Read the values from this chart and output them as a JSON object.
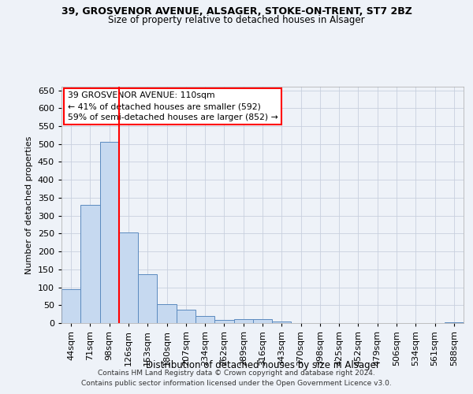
{
  "title_line1": "39, GROSVENOR AVENUE, ALSAGER, STOKE-ON-TRENT, ST7 2BZ",
  "title_line2": "Size of property relative to detached houses in Alsager",
  "xlabel": "Distribution of detached houses by size in Alsager",
  "ylabel": "Number of detached properties",
  "footer_line1": "Contains HM Land Registry data © Crown copyright and database right 2024.",
  "footer_line2": "Contains public sector information licensed under the Open Government Licence v3.0.",
  "annotation_line1": "39 GROSVENOR AVENUE: 110sqm",
  "annotation_line2": "← 41% of detached houses are smaller (592)",
  "annotation_line3": "59% of semi-detached houses are larger (852) →",
  "bar_labels": [
    "44sqm",
    "71sqm",
    "98sqm",
    "126sqm",
    "153sqm",
    "180sqm",
    "207sqm",
    "234sqm",
    "262sqm",
    "289sqm",
    "316sqm",
    "343sqm",
    "370sqm",
    "398sqm",
    "425sqm",
    "452sqm",
    "479sqm",
    "506sqm",
    "534sqm",
    "561sqm",
    "588sqm"
  ],
  "bar_values": [
    95,
    330,
    505,
    252,
    137,
    53,
    37,
    20,
    8,
    10,
    10,
    5,
    1,
    1,
    1,
    0,
    1,
    0,
    0,
    0,
    3
  ],
  "bar_color": "#c6d9f0",
  "bar_edge_color": "#5b8abf",
  "ylim": [
    0,
    660
  ],
  "yticks": [
    0,
    50,
    100,
    150,
    200,
    250,
    300,
    350,
    400,
    450,
    500,
    550,
    600,
    650
  ],
  "grid_color": "#c8d0de",
  "background_color": "#eef2f8"
}
